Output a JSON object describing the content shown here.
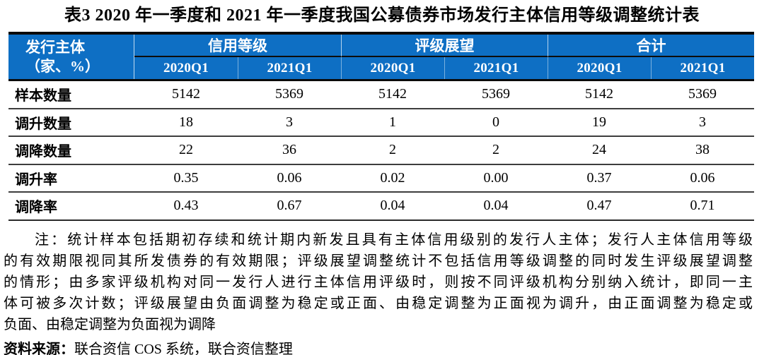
{
  "title": "表3 2020 年一季度和 2021 年一季度我国公募债券市场发行主体信用等级调整统计表",
  "table": {
    "corner": {
      "line1": "发行主体",
      "line2": "（家、%）"
    },
    "groups": [
      "信用等级",
      "评级展望",
      "合计"
    ],
    "subheaders": [
      "2020Q1",
      "2021Q1",
      "2020Q1",
      "2021Q1",
      "2020Q1",
      "2021Q1"
    ],
    "rows": [
      {
        "label": "样本数量",
        "values": [
          "5142",
          "5369",
          "5142",
          "5369",
          "5142",
          "5369"
        ]
      },
      {
        "label": "调升数量",
        "values": [
          "18",
          "3",
          "1",
          "0",
          "19",
          "3"
        ]
      },
      {
        "label": "调降数量",
        "values": [
          "22",
          "36",
          "2",
          "2",
          "24",
          "38"
        ]
      },
      {
        "label": "调升率",
        "values": [
          "0.35",
          "0.06",
          "0.02",
          "0.00",
          "0.37",
          "0.06"
        ]
      },
      {
        "label": "调降率",
        "values": [
          "0.43",
          "0.67",
          "0.04",
          "0.04",
          "0.47",
          "0.71"
        ]
      }
    ]
  },
  "note": {
    "lines": [
      "注：统计样本包括期初存续和统计期内新发且具有主体信用级别的发行人主体；发行人主体信用等级",
      "的有效期限视同其所发债券的有效期限；评级展望调整统计不包括信用等级调整的同时发生评级展望调整",
      "的情形；由多家评级机构对同一发行人进行主体信用评级时，则按不同评级机构分别纳入统计，即同一主",
      "体可被多次计数；评级展望由负面调整为稳定或正面、由稳定调整为正面视为调升，由正面调整为稳定或",
      "负面、由稳定调整为负面视为调降"
    ]
  },
  "source": {
    "label": "资料来源：",
    "text": "联合资信 COS 系统，联合资信整理"
  },
  "colors": {
    "header_bg": "#0E6FC4",
    "header_text": "#FFFFFF",
    "rule_dark": "#0A0A0A",
    "row_rule": "#3D3D3D"
  }
}
